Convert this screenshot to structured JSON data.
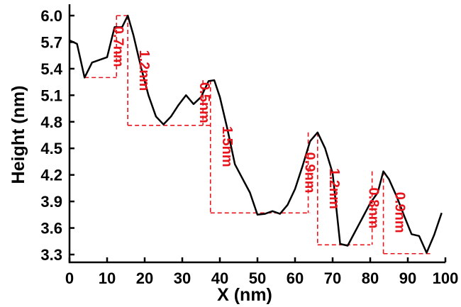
{
  "chart_data": {
    "type": "line",
    "xlabel": "X (nm)",
    "ylabel": "Height (nm)",
    "xlim": [
      0,
      100
    ],
    "ylim": [
      3.2,
      6.05
    ],
    "xticks": [
      "0",
      "10",
      "20",
      "30",
      "40",
      "50",
      "60",
      "70",
      "80",
      "90",
      "100"
    ],
    "xtick_values": [
      0,
      10,
      20,
      30,
      40,
      50,
      60,
      70,
      80,
      90,
      100
    ],
    "yticks": [
      "3.3",
      "3.6",
      "3.9",
      "4.2",
      "4.5",
      "4.8",
      "5.1",
      "5.4",
      "5.7",
      "6.0"
    ],
    "ytick_values": [
      3.3,
      3.6,
      3.9,
      4.2,
      4.5,
      4.8,
      5.1,
      5.4,
      5.7,
      6.0
    ],
    "grid": false,
    "series": [
      {
        "color": "#000000",
        "x": [
          0,
          2,
          4,
          6,
          8,
          10,
          12,
          14,
          15.5,
          17,
          19,
          21,
          23,
          25,
          27,
          29,
          31,
          33,
          35,
          37,
          38.5,
          40,
          42,
          44,
          46,
          48,
          50,
          52,
          54,
          56,
          58,
          60,
          62,
          64,
          66,
          68,
          70,
          72,
          74,
          76,
          78,
          80,
          82,
          83.5,
          85,
          87,
          89,
          91,
          93,
          95,
          97,
          99
        ],
        "y": [
          5.72,
          5.68,
          5.3,
          5.47,
          5.5,
          5.53,
          5.87,
          5.87,
          6.0,
          5.78,
          5.42,
          5.1,
          4.86,
          4.77,
          4.86,
          4.99,
          5.1,
          5.0,
          5.08,
          5.26,
          5.27,
          5.08,
          4.72,
          4.32,
          4.16,
          4.0,
          3.75,
          3.76,
          3.79,
          3.76,
          3.86,
          4.04,
          4.3,
          4.58,
          4.68,
          4.5,
          4.22,
          3.42,
          3.4,
          3.56,
          3.72,
          3.88,
          4.0,
          4.24,
          4.15,
          3.96,
          3.74,
          3.53,
          3.51,
          3.32,
          3.52,
          3.77
        ]
      }
    ],
    "annotations": {
      "color": "#e8141c",
      "steps": [
        {
          "label": "0.7nm",
          "x": 12.5,
          "y_top": 6.0,
          "y_bottom": 5.3,
          "x_ref": 15.5,
          "ref_from": 4,
          "label_pos": "left"
        },
        {
          "label": "1.2nm",
          "x": 15.5,
          "y_top": 6.0,
          "y_bottom": 4.76,
          "ref_to": 37.5,
          "label_pos": "right"
        },
        {
          "label": "0.5nm",
          "x": 35.5,
          "y_top": 5.27,
          "y_bottom": 4.76,
          "label_pos": "left"
        },
        {
          "label": "1.5nm",
          "x": 37.5,
          "y_top": 5.27,
          "y_bottom": 3.77,
          "ref_to": 64,
          "label_pos": "right"
        },
        {
          "label": "0.9nm",
          "x": 63.5,
          "y_top": 4.68,
          "y_bottom": 3.77,
          "label_pos": "left"
        },
        {
          "label": "1.2nm",
          "x": 66,
          "y_top": 4.68,
          "y_bottom": 3.41,
          "ref_to": 80,
          "label_pos": "right"
        },
        {
          "label": "0.8nm",
          "x": 80.5,
          "y_top": 4.24,
          "y_bottom": 3.41,
          "label_pos": "left"
        },
        {
          "label": "0.9nm",
          "x": 83.5,
          "y_top": 4.24,
          "y_bottom": 3.31,
          "ref_to": 96,
          "label_pos": "right"
        }
      ]
    }
  }
}
